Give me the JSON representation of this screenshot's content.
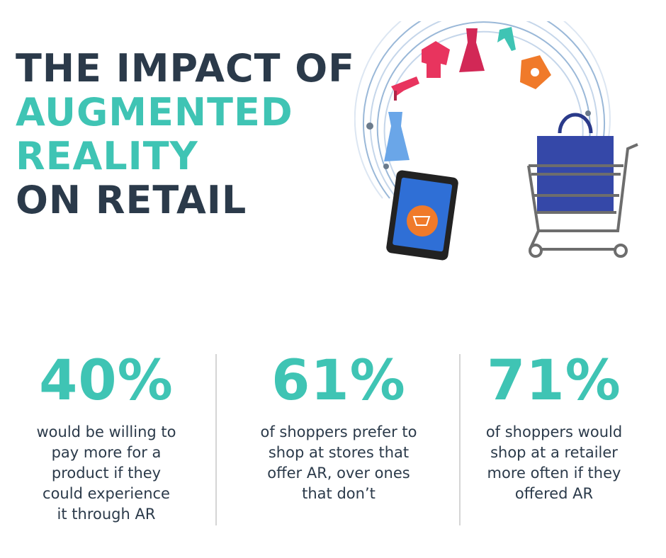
{
  "title": {
    "line1": "THE IMPACT OF",
    "line2": "AUGMENTED",
    "line3": "REALITY",
    "line4": "ON RETAIL"
  },
  "colors": {
    "dark": "#2b3a4a",
    "teal": "#3fc4b4",
    "orange": "#f07a2a",
    "pink": "#e8345e",
    "blue": "#3548a8"
  },
  "illustration": {
    "icons": [
      "high-heel-icon",
      "shirt-icon",
      "dress-icon",
      "heels-icon",
      "jacket-icon",
      "tank-dress-icon",
      "tablet-icon",
      "shopping-bag-icon",
      "shopping-cart-icon"
    ]
  },
  "stats": [
    {
      "value": "40%",
      "desc": [
        "would be willing to",
        "pay more for a",
        "product if they",
        "could experience",
        "it through AR"
      ]
    },
    {
      "value": "61%",
      "desc": [
        "of shoppers prefer to",
        "shop at stores that",
        "offer AR, over ones",
        "that don’t"
      ]
    },
    {
      "value": "71%",
      "desc": [
        "of shoppers would",
        "shop at a retailer",
        "more often if they",
        "offered AR"
      ]
    }
  ]
}
